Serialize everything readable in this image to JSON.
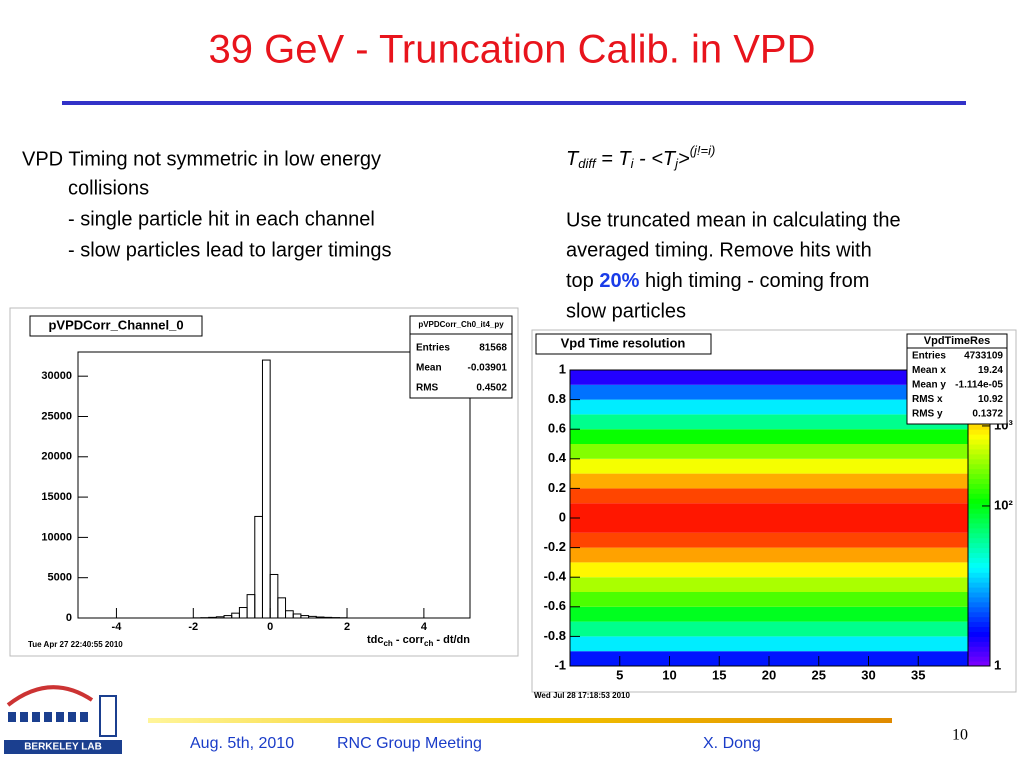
{
  "title": "39 GeV - Truncation Calib. in VPD",
  "left_text": {
    "line1": "VPD Timing not symmetric in low energy",
    "line2": "collisions",
    "bullets": [
      "- single particle hit in each channel",
      "- slow particles lead to larger timings"
    ]
  },
  "right_text": {
    "formula": [
      "T",
      "diff",
      " = T",
      "i",
      " - <T",
      "j",
      ">",
      "(j!=i)"
    ],
    "paragraph": [
      "Use truncated mean in calculating the",
      "averaged timing. Remove hits with"
    ],
    "line3": {
      "before": "top ",
      "highlight": "20%",
      "after": " high timing - coming from"
    },
    "line4": "slow particles"
  },
  "chart_data": [
    {
      "type": "histogram",
      "title": "pVPDCorr_Channel_0",
      "color": "#000000",
      "bins": [
        -2,
        -1.8,
        -1.6,
        -1.4,
        -1.2,
        -1,
        -0.8,
        -0.6,
        -0.4,
        -0.2,
        0,
        0.2,
        0.4,
        0.6,
        0.8,
        1,
        1.2,
        1.4,
        1.6,
        1.8,
        2
      ],
      "counts": [
        20,
        40,
        80,
        150,
        300,
        600,
        1300,
        2900,
        12600,
        32000,
        5400,
        2500,
        900,
        500,
        300,
        200,
        120,
        80,
        50,
        30
      ],
      "xlim": [
        -5,
        5.2
      ],
      "xticks": [
        -4,
        -2,
        0,
        2,
        4
      ],
      "ylim": [
        0,
        33000
      ],
      "yticks": [
        0,
        5000,
        10000,
        15000,
        20000,
        25000,
        30000
      ],
      "x_label": [
        "tdc",
        "ch",
        " - corr",
        "ch",
        " - dt/dn"
      ],
      "stats": {
        "name": "pVPDCorr_Ch0_it4_py",
        "rows": [
          [
            "Entries",
            "81568"
          ],
          [
            "Mean",
            "-0.03901"
          ],
          [
            "RMS",
            "0.4502"
          ]
        ]
      },
      "timestamp": "Tue Apr 27 22:40:55 2010"
    },
    {
      "type": "heatmap",
      "title": "Vpd Time resolution",
      "xlim": [
        0,
        40
      ],
      "xticks": [
        5,
        10,
        15,
        20,
        25,
        30,
        35
      ],
      "ylim": [
        -1,
        1
      ],
      "yticks": [
        -1,
        -0.8,
        -0.6,
        -0.4,
        -0.2,
        0,
        0.2,
        0.4,
        0.6,
        0.8,
        1
      ],
      "y_bins": [
        -1,
        -0.9,
        -0.8,
        -0.7,
        -0.6,
        -0.5,
        -0.4,
        -0.3,
        -0.2,
        -0.1,
        0,
        0.1,
        0.2,
        0.3,
        0.4,
        0.5,
        0.6,
        0.7,
        0.8,
        0.9,
        1
      ],
      "values": [
        3,
        15,
        40,
        90,
        200,
        400,
        800,
        1500,
        3000,
        4200,
        4200,
        3000,
        1400,
        700,
        300,
        120,
        40,
        15,
        6,
        2
      ],
      "log_z": true,
      "zlim": [
        1,
        5000
      ],
      "zticks": [
        1,
        {
          "value": 100,
          "label": "10²"
        },
        {
          "value": 1000,
          "label": "10³"
        }
      ],
      "stats": {
        "name": "VpdTimeRes",
        "rows": [
          [
            "Entries",
            "4733109"
          ],
          [
            "Mean x",
            "19.24"
          ],
          [
            "Mean y",
            "-1.114e-05"
          ],
          [
            "RMS x",
            "10.92"
          ],
          [
            "RMS y",
            "0.1372"
          ]
        ]
      },
      "timestamp": "Wed Jul 28 17:18:53 2010"
    }
  ],
  "logo": "BERKELEY LAB",
  "footer": {
    "date": "Aug. 5th, 2010",
    "meeting": "RNC Group Meeting",
    "author": "X. Dong"
  },
  "page_number": "10"
}
